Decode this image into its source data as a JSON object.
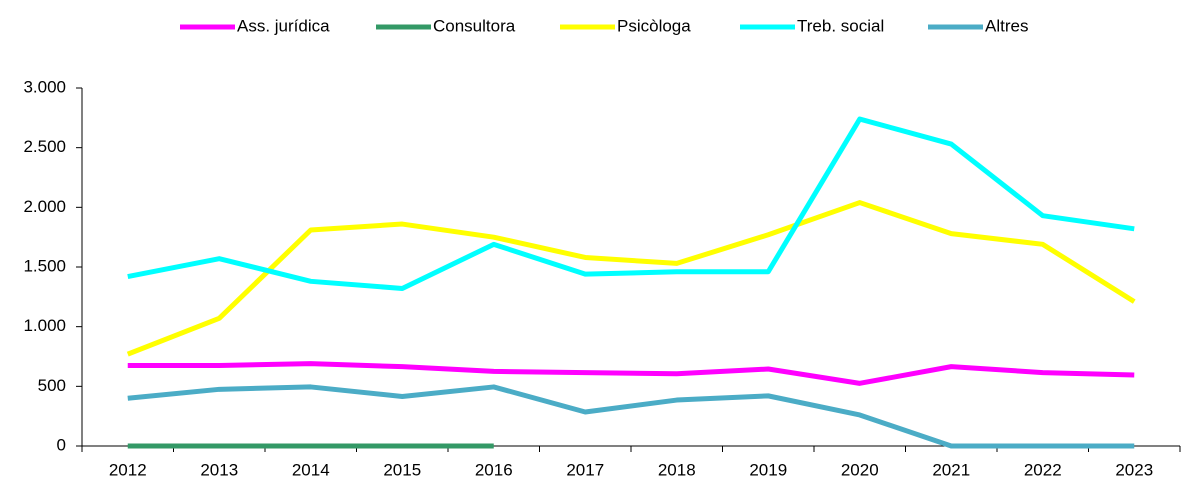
{
  "chart_data": {
    "type": "line",
    "categories": [
      "2012",
      "2013",
      "2014",
      "2015",
      "2016",
      "2017",
      "2018",
      "2019",
      "2020",
      "2021",
      "2022",
      "2023"
    ],
    "series": [
      {
        "name": "Ass. jurídica",
        "color": "#ff00ff",
        "values": [
          675,
          675,
          690,
          665,
          625,
          615,
          605,
          645,
          525,
          665,
          615,
          595
        ]
      },
      {
        "name": "Consultora",
        "color": "#339966",
        "values": [
          0,
          0,
          0,
          0,
          0,
          null,
          null,
          null,
          null,
          null,
          null,
          null
        ]
      },
      {
        "name": "Psicòloga",
        "color": "#ffff00",
        "values": [
          770,
          1070,
          1810,
          1860,
          1750,
          1580,
          1530,
          1770,
          2040,
          1780,
          1690,
          1210
        ]
      },
      {
        "name": "Treb. social",
        "color": "#00ffff",
        "values": [
          1420,
          1570,
          1380,
          1320,
          1690,
          1440,
          1460,
          1460,
          2740,
          2530,
          1930,
          1820
        ]
      },
      {
        "name": "Altres",
        "color": "#4bacc6",
        "values": [
          400,
          475,
          495,
          415,
          495,
          285,
          385,
          420,
          260,
          0,
          0,
          0
        ]
      }
    ],
    "ylim": [
      0,
      3000
    ],
    "yticks": [
      0,
      500,
      {
        "value": 1000,
        "label": "1.000"
      },
      {
        "value": 1500,
        "label": "1.500"
      },
      {
        "value": 2000,
        "label": "2.000"
      },
      {
        "value": 2500,
        "label": "2.500"
      },
      {
        "value": 3000,
        "label": "3.000"
      }
    ],
    "legend": "top",
    "grid": false
  }
}
